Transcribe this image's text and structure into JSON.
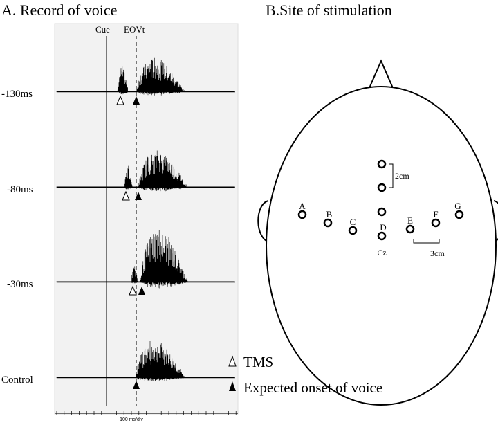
{
  "panel_a": {
    "title": "A. Record of voice",
    "markers": {
      "cue": "Cue",
      "eovt": "EOVt"
    },
    "rows": [
      "-130ms",
      "-80ms",
      "-30ms",
      "Control"
    ],
    "axis_label": "100 ms/div"
  },
  "panel_b": {
    "title": "B.Site of stimulation",
    "electrodes": [
      "A",
      "B",
      "C",
      "D",
      "E",
      "F",
      "G"
    ],
    "distance_vertical": "2cm",
    "center_label": "Cz",
    "distance_horizontal": "3cm"
  },
  "legend": {
    "tms": "TMS",
    "expected_onset": "Expected onset of voice"
  }
}
